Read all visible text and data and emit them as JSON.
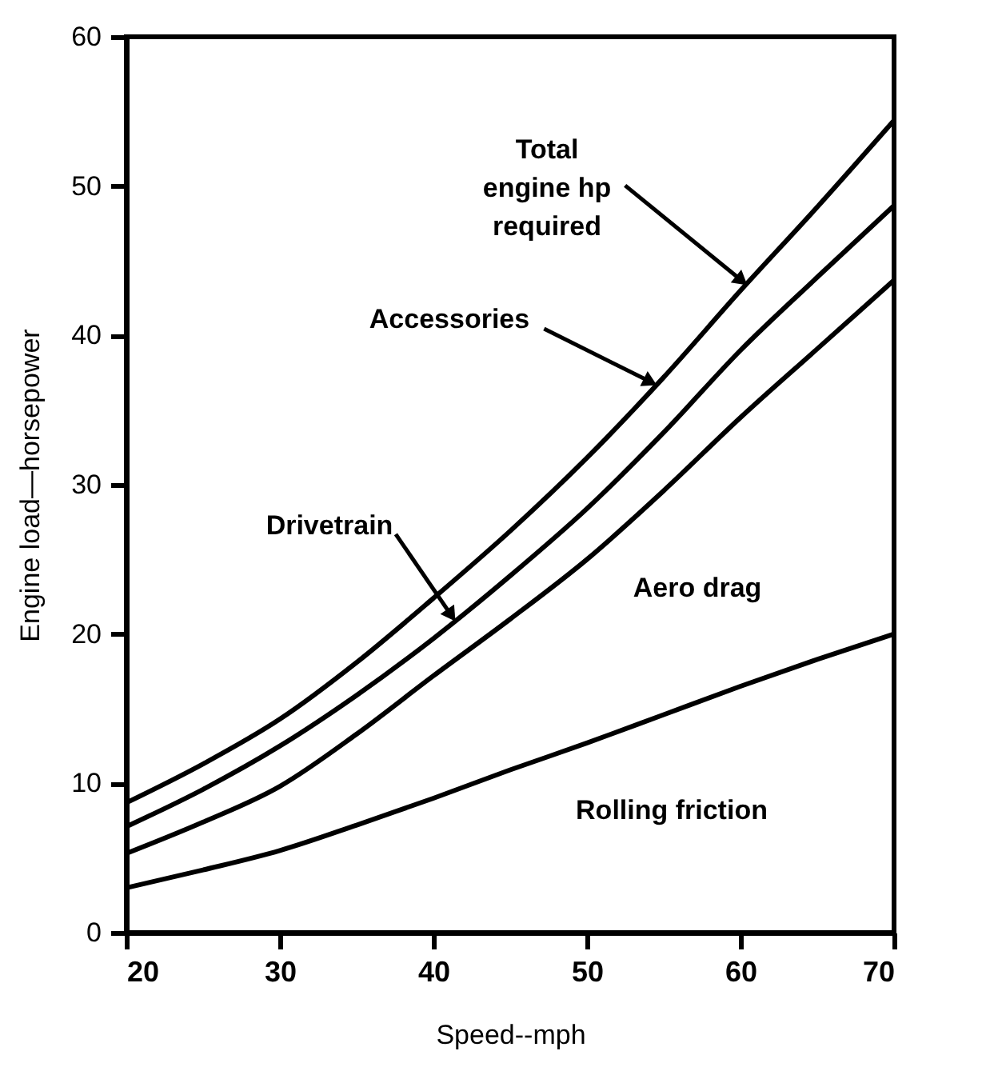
{
  "chart_data": {
    "type": "line",
    "xlabel": "Speed--mph",
    "ylabel": "Engine load—horsepower",
    "x": [
      20,
      25,
      30,
      35,
      40,
      45,
      50,
      55,
      60,
      65,
      70
    ],
    "series": [
      {
        "color": "#000000",
        "values": [
          8.7,
          11.3,
          14.3,
          18.1,
          22.4,
          26.9,
          31.8,
          37.2,
          43,
          48.6,
          54.4
        ]
      },
      {
        "color": "#000000",
        "values": [
          7.1,
          9.6,
          12.5,
          15.9,
          19.7,
          23.9,
          28.4,
          33.5,
          39,
          43.9,
          48.7
        ]
      },
      {
        "color": "#000000",
        "values": [
          5.3,
          7.4,
          9.8,
          13.3,
          17.2,
          21,
          25,
          29.6,
          34.5,
          39.1,
          43.7
        ]
      },
      {
        "color": "#000000",
        "values": [
          3,
          4.2,
          5.5,
          7.2,
          9,
          10.9,
          12.7,
          14.6,
          16.5,
          18.3,
          20
        ]
      }
    ],
    "xlim": [
      20,
      70
    ],
    "xticks": [
      20,
      30,
      40,
      50,
      60,
      70
    ],
    "ylim": [
      0,
      60
    ],
    "yticks": [
      0,
      10,
      20,
      30,
      40,
      50,
      60
    ],
    "grid": false,
    "legend": false,
    "marker": "none",
    "line_style": "solid",
    "annotations": [
      {
        "text": "Total\nengine hp\nrequired",
        "x": 60.4,
        "y": 43.4
      },
      {
        "text": "Accessories",
        "x": 54.5,
        "y": 36.7
      },
      {
        "text": "Drivetrain",
        "x": 41.4,
        "y": 20.9
      },
      "Aero drag",
      "Rolling friction"
    ]
  }
}
